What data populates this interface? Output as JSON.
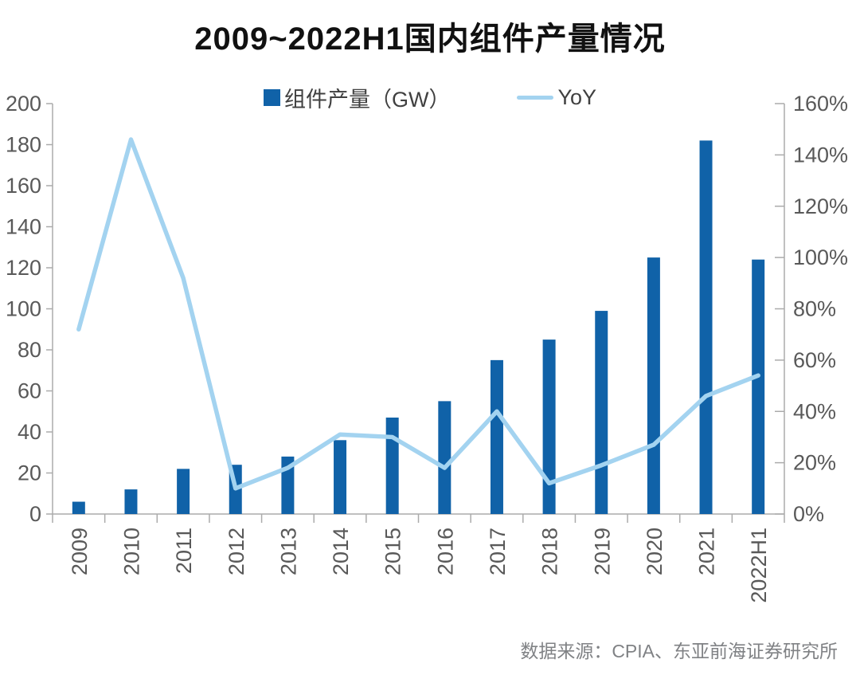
{
  "title": "2009~2022H1国内组件产量情况",
  "legend": {
    "bar_label": "组件产量（GW）",
    "line_label": "YoY"
  },
  "footer": "数据来源：CPIA、东亚前海证券研究所",
  "colors": {
    "bar": "#1062A8",
    "line": "#A3D3F0",
    "title_text": "#111111",
    "axis_text": "#595959",
    "axis_line": "#ABABAB",
    "footer_text": "#808285"
  },
  "chart_data": {
    "type": "bar",
    "subtype": "bar+line combo, dual axis",
    "title": "2009~2022H1国内组件产量情况",
    "categories": [
      "2009",
      "2010",
      "2011",
      "2012",
      "2013",
      "2014",
      "2015",
      "2016",
      "2017",
      "2018",
      "2019",
      "2020",
      "2021",
      "2022H1"
    ],
    "series": [
      {
        "name": "组件产量（GW）",
        "type": "bar",
        "axis": "left",
        "unit": "GW",
        "values": [
          6,
          12,
          22,
          24,
          28,
          36,
          47,
          55,
          75,
          85,
          99,
          125,
          182,
          124
        ]
      },
      {
        "name": "YoY",
        "type": "line",
        "axis": "right",
        "unit": "%",
        "values": [
          72,
          146,
          92,
          10,
          18,
          31,
          30,
          18,
          40,
          12,
          19,
          27,
          46,
          54
        ]
      }
    ],
    "left_axis": {
      "min": 0,
      "max": 200,
      "step": 20,
      "tick_labels": [
        "0",
        "20",
        "40",
        "60",
        "80",
        "100",
        "120",
        "140",
        "160",
        "180",
        "200"
      ]
    },
    "right_axis": {
      "min_pct": 0,
      "max_pct": 160,
      "step_pct": 20,
      "tick_labels": [
        "0%",
        "20%",
        "40%",
        "60%",
        "80%",
        "100%",
        "120%",
        "140%",
        "160%"
      ]
    },
    "grid": false,
    "legend_position": "top",
    "x_tick_label_rotation_deg": -90
  }
}
